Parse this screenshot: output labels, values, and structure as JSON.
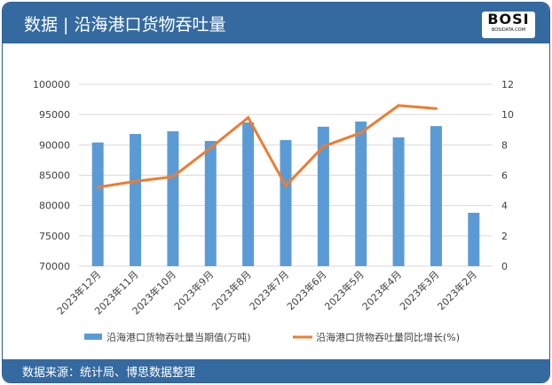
{
  "header": {
    "title": "数据 | 沿海港口货物吞吐量",
    "logo_text": "BOSI",
    "logo_sub": "BOSIDATA.COM"
  },
  "footer": {
    "source": "数据来源：统计局、博思数据整理"
  },
  "colors": {
    "bar": "#5b9bd5",
    "line": "#ed7d31",
    "header": "#356aa0"
  },
  "chart_data": {
    "type": "bar+line",
    "categories": [
      "2023年12月",
      "2023年11月",
      "2023年10月",
      "2023年9月",
      "2023年8月",
      "2023年7月",
      "2023年6月",
      "2023年5月",
      "2023年4月",
      "2023年3月",
      "2023年2月"
    ],
    "series": [
      {
        "name": "沿海港口货物吞吐量当期值(万吨)",
        "type": "bar",
        "axis": "left",
        "values": [
          90400,
          91800,
          92250,
          90650,
          93700,
          90800,
          93000,
          93850,
          91250,
          93100,
          78800
        ]
      },
      {
        "name": "沿海港口货物吞吐量同比增长(%)",
        "type": "line",
        "axis": "right",
        "values": [
          5.2,
          5.6,
          5.9,
          7.8,
          9.8,
          5.3,
          7.9,
          8.8,
          10.6,
          10.4,
          null
        ]
      }
    ],
    "y_left": {
      "range": [
        70000,
        100000
      ],
      "ticks": [
        "70000",
        "75000",
        "80000",
        "85000",
        "90000",
        "95000",
        "100000"
      ]
    },
    "y_right": {
      "range": [
        0,
        12
      ],
      "ticks": [
        "0",
        "2",
        "4",
        "6",
        "8",
        "10",
        "12"
      ]
    },
    "grid": true,
    "legend": "bottom"
  }
}
